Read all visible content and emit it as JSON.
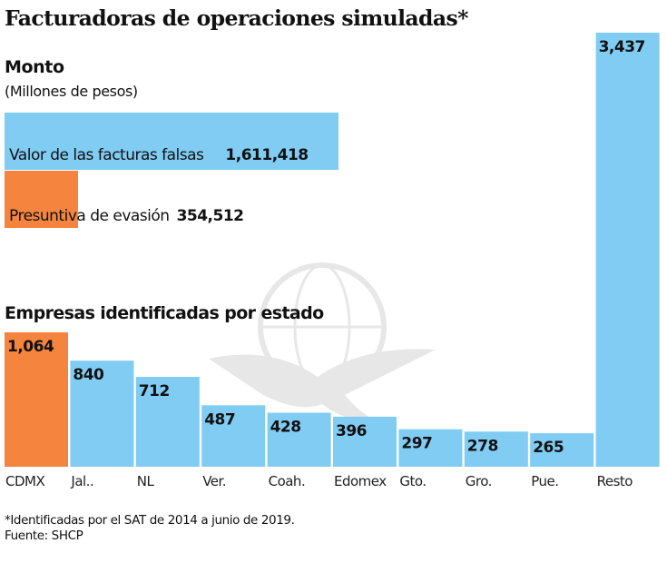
{
  "title": "Facturadoras de operaciones simuladas*",
  "monto": {
    "heading": "Monto",
    "unit": "(Millones de pesos)",
    "items": [
      {
        "label": "Valor de las facturas falsas",
        "value_text": "1,611,418",
        "value": 1611418,
        "color": "#80CCF3"
      },
      {
        "label": "Presuntiva de evasión",
        "value_text": "354,512",
        "value": 354512,
        "color": "#F5843F"
      }
    ]
  },
  "chart_data": [
    {
      "type": "bar",
      "orientation": "horizontal",
      "title": "Monto",
      "subtitle": "(Millones de pesos)",
      "categories": [
        "Valor de las facturas falsas",
        "Presuntiva de evasión"
      ],
      "values": [
        1611418,
        354512
      ],
      "colors": [
        "#80CCF3",
        "#F5843F"
      ]
    },
    {
      "type": "bar",
      "orientation": "vertical",
      "title": "Empresas identificadas por estado",
      "categories": [
        "CDMX",
        "Jal..",
        "NL",
        "Ver.",
        "Coah.",
        "Edomex",
        "Gto.",
        "Gro.",
        "Pue.",
        "Resto"
      ],
      "values": [
        1064,
        840,
        712,
        487,
        428,
        396,
        297,
        278,
        265,
        3437
      ],
      "value_labels": [
        "1,064",
        "840",
        "712",
        "487",
        "428",
        "396",
        "297",
        "278",
        "265",
        "3,437"
      ],
      "colors": [
        "#F5843F",
        "#80CCF3",
        "#80CCF3",
        "#80CCF3",
        "#80CCF3",
        "#80CCF3",
        "#80CCF3",
        "#80CCF3",
        "#80CCF3",
        "#80CCF3"
      ],
      "xlabel": "",
      "ylabel": "",
      "ylim": [
        0,
        3437
      ],
      "grid": false,
      "legend": "none"
    }
  ],
  "footnote": "*Identificadas por el SAT de 2014 a junio de 2019.",
  "source": "Fuente: SHCP",
  "watermark": "Excélsior"
}
